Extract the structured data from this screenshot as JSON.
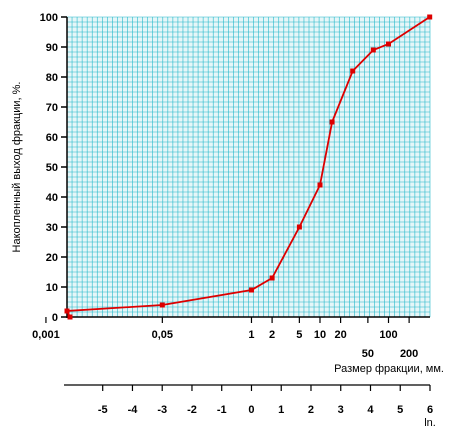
{
  "chart_data": {
    "type": "line",
    "ylabel": "Накопленный выход фракции, %.",
    "xlabel": "Размер фракции, мм.",
    "ln_axis_label": "ln.",
    "xscale": "natural log (ln) of particle size",
    "ylim": [
      0,
      100
    ],
    "xlim_ln": [
      -6.2,
      6.0
    ],
    "grid": true,
    "colors": {
      "line": "#dd0000",
      "grid": "#22b8c9",
      "plot_bg": "#e6f6f8"
    },
    "y_ticks": [
      "0",
      "10",
      "20",
      "30",
      "40",
      "50",
      "60",
      "70",
      "80",
      "90",
      "100"
    ],
    "size_ticks_row1": [
      "0,001",
      "0,05",
      "1",
      "2",
      "5",
      "10",
      "20",
      "100"
    ],
    "size_ticks_row2": [
      "50",
      "200"
    ],
    "ln_ticks": [
      "-5",
      "-4",
      "-3",
      "-2",
      "-1",
      "0",
      "1",
      "2",
      "3",
      "4",
      "5",
      "6"
    ],
    "series": [
      {
        "x": [
          0.001,
          0.001,
          0.05,
          1,
          2,
          5,
          10,
          15,
          30,
          60,
          100,
          400
        ],
        "y": [
          0,
          2,
          4,
          9,
          13,
          30,
          44,
          65,
          82,
          89,
          91,
          100
        ]
      }
    ]
  }
}
